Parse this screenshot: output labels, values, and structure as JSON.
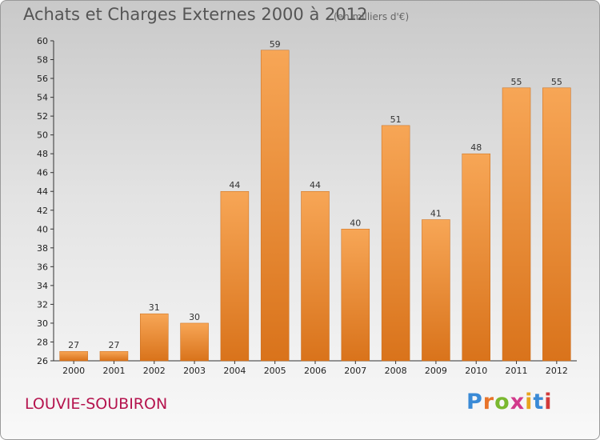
{
  "title": "Achats et Charges Externes 2000 à 2012",
  "subtitle": "(en milliers d'€)",
  "commune": "LOUVIE-SOUBIRON",
  "logo": {
    "text": "Proxiti",
    "letter_colors": [
      "#3a8ad6",
      "#e8742a",
      "#7ab82f",
      "#d23a8c",
      "#e8a41e",
      "#3a8ad6",
      "#d23a3a"
    ]
  },
  "colors": {
    "bar_top": "#f7a656",
    "bar_bottom": "#d9731b",
    "bar_edge": "#c96a18"
  },
  "chart_data": {
    "type": "bar",
    "title": "Achats et Charges Externes 2000 à 2012",
    "subtitle": "(en milliers d'€)",
    "categories": [
      "2000",
      "2001",
      "2002",
      "2003",
      "2004",
      "2005",
      "2006",
      "2007",
      "2008",
      "2009",
      "2010",
      "2011",
      "2012"
    ],
    "values": [
      27,
      27,
      31,
      30,
      44,
      59,
      44,
      40,
      51,
      41,
      48,
      55,
      55
    ],
    "ylim": [
      26,
      60
    ],
    "yticks": [
      26,
      28,
      30,
      32,
      34,
      36,
      38,
      40,
      42,
      44,
      46,
      48,
      50,
      52,
      54,
      56,
      58,
      60
    ],
    "grid": false,
    "xlabel": "",
    "ylabel": ""
  }
}
